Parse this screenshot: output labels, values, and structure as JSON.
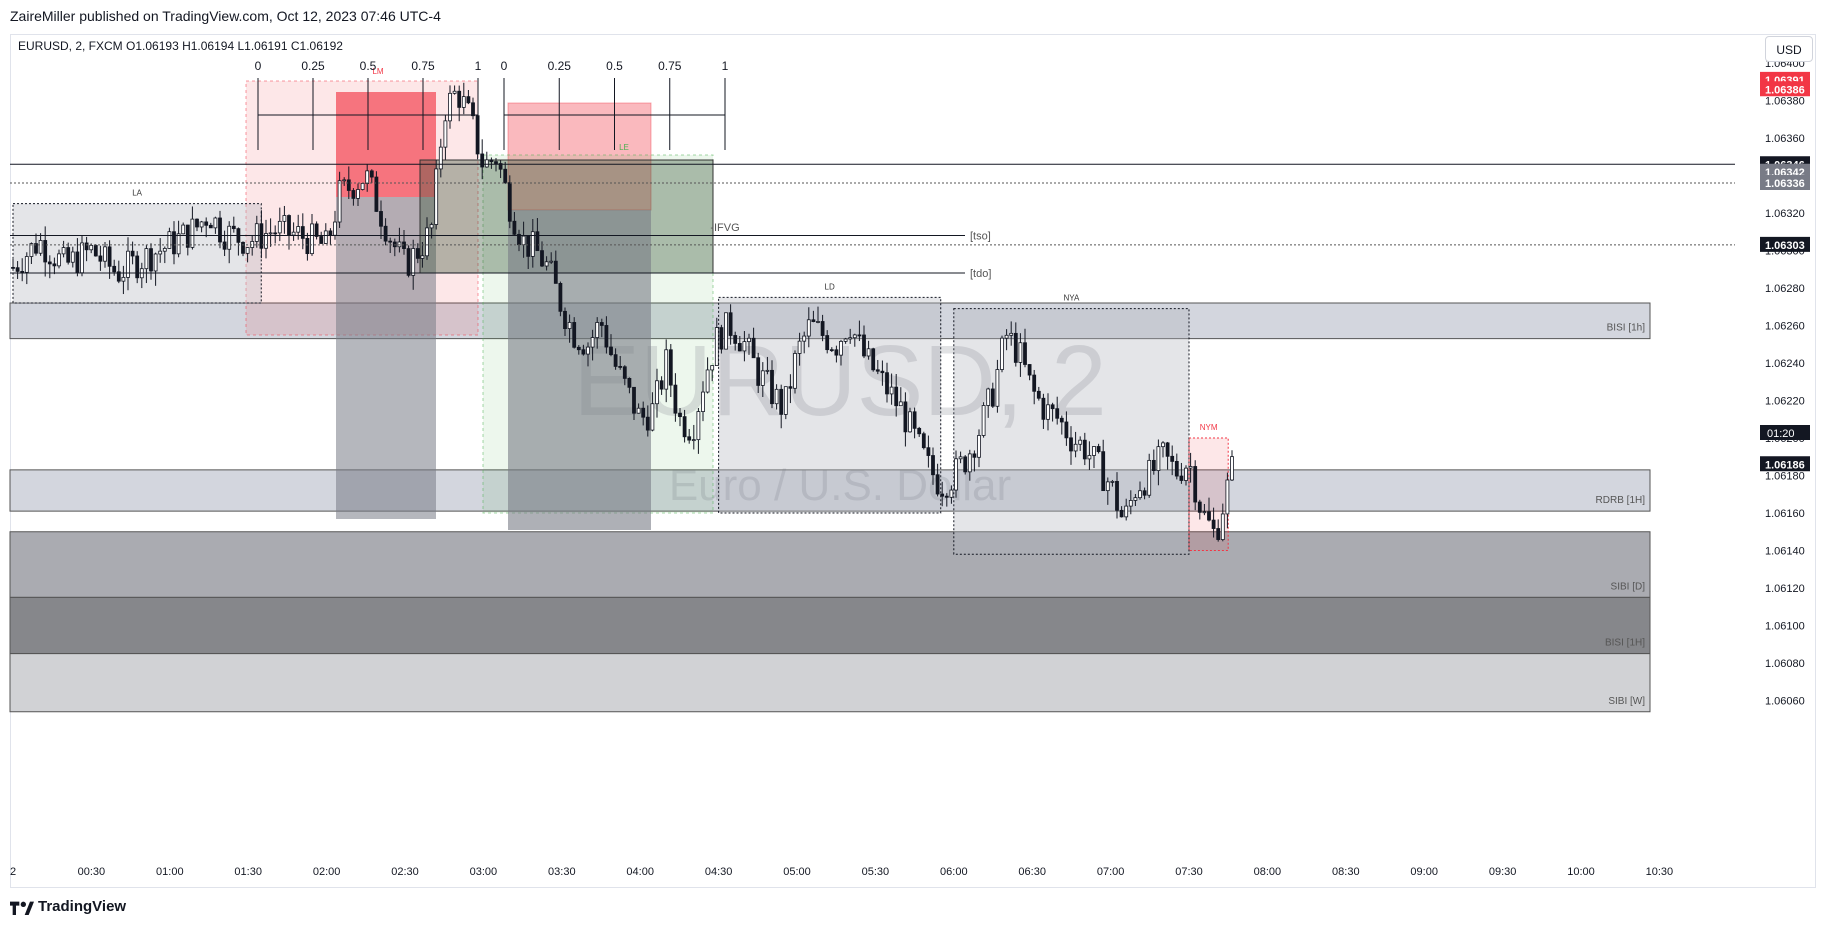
{
  "header": {
    "publisher_line": "ZaireMiller published on TradingView.com, Oct 12, 2023 07:46 UTC-4"
  },
  "footer": {
    "brand": "TradingView"
  },
  "price_scale": {
    "currency_button": "USD"
  },
  "legend": {
    "symbol": "EURUSD, 2, FXCM",
    "open_label": "O",
    "open": "1.06193",
    "high_label": "H",
    "high": "1.06194",
    "low_label": "L",
    "low": "1.06191",
    "close_label": "C",
    "close": "1.06192"
  },
  "watermark": {
    "symbol": "EURUSD, 2",
    "description": "Euro / U.S. Dollar"
  },
  "chart_data": {
    "type": "candlestick",
    "symbol": "EURUSD",
    "timeframe": "2",
    "yaxis": {
      "min": 1.0605,
      "max": 1.0641,
      "ticks": [
        "1.06400",
        "1.06380",
        "1.06360",
        "1.06340",
        "1.06320",
        "1.06300",
        "1.06280",
        "1.06260",
        "1.06240",
        "1.06220",
        "1.06200",
        "1.06180",
        "1.06160",
        "1.06140",
        "1.06120",
        "1.06100",
        "1.06080",
        "1.06060"
      ]
    },
    "xaxis": {
      "ticks": [
        "2",
        "00:30",
        "01:00",
        "01:30",
        "02:00",
        "02:30",
        "03:00",
        "03:30",
        "04:00",
        "04:30",
        "05:00",
        "05:30",
        "06:00",
        "06:30",
        "07:00",
        "07:30",
        "08:00",
        "08:30",
        "09:00",
        "09:30",
        "10:00",
        "10:30"
      ]
    },
    "price_path": [
      [
        "00:00",
        1.06291
      ],
      [
        "00:10",
        1.06305
      ],
      [
        "00:20",
        1.06292
      ],
      [
        "00:30",
        1.063
      ],
      [
        "00:40",
        1.06288
      ],
      [
        "00:50",
        1.06296
      ],
      [
        "01:00",
        1.06303
      ],
      [
        "01:10",
        1.06312
      ],
      [
        "01:15",
        1.0632
      ],
      [
        "01:20",
        1.0631
      ],
      [
        "01:30",
        1.06305
      ],
      [
        "01:40",
        1.06311
      ],
      [
        "01:50",
        1.06308
      ],
      [
        "02:00",
        1.06302
      ],
      [
        "02:05",
        1.0633
      ],
      [
        "02:15",
        1.0634
      ],
      [
        "02:25",
        1.06305
      ],
      [
        "02:30",
        1.06292
      ],
      [
        "02:35",
        1.063
      ],
      [
        "02:40",
        1.0631
      ],
      [
        "02:45",
        1.06375
      ],
      [
        "02:50",
        1.06385
      ],
      [
        "02:55",
        1.0637
      ],
      [
        "03:00",
        1.06345
      ],
      [
        "03:05",
        1.0635
      ],
      [
        "03:10",
        1.06325
      ],
      [
        "03:15",
        1.06305
      ],
      [
        "03:20",
        1.063
      ],
      [
        "03:25",
        1.0629
      ],
      [
        "03:30",
        1.0627
      ],
      [
        "03:35",
        1.06255
      ],
      [
        "03:40",
        1.0625
      ],
      [
        "03:45",
        1.06262
      ],
      [
        "03:50",
        1.0624
      ],
      [
        "03:55",
        1.06225
      ],
      [
        "04:00",
        1.0621
      ],
      [
        "04:05",
        1.06215
      ],
      [
        "04:10",
        1.0624
      ],
      [
        "04:15",
        1.0621
      ],
      [
        "04:20",
        1.06205
      ],
      [
        "04:25",
        1.06235
      ],
      [
        "04:30",
        1.06255
      ],
      [
        "04:35",
        1.0626
      ],
      [
        "04:40",
        1.0625
      ],
      [
        "04:45",
        1.06235
      ],
      [
        "04:50",
        1.06225
      ],
      [
        "04:55",
        1.06215
      ],
      [
        "05:00",
        1.06245
      ],
      [
        "05:05",
        1.0626
      ],
      [
        "05:10",
        1.06255
      ],
      [
        "05:15",
        1.0625
      ],
      [
        "05:20",
        1.06262
      ],
      [
        "05:25",
        1.06245
      ],
      [
        "05:30",
        1.06235
      ],
      [
        "05:35",
        1.06225
      ],
      [
        "05:40",
        1.06215
      ],
      [
        "05:45",
        1.062
      ],
      [
        "05:50",
        1.06185
      ],
      [
        "05:55",
        1.06175
      ],
      [
        "06:00",
        1.0618
      ],
      [
        "06:05",
        1.0619
      ],
      [
        "06:10",
        1.06205
      ],
      [
        "06:15",
        1.06225
      ],
      [
        "06:20",
        1.06255
      ],
      [
        "06:25",
        1.06245
      ],
      [
        "06:30",
        1.06225
      ],
      [
        "06:35",
        1.06215
      ],
      [
        "06:40",
        1.0621
      ],
      [
        "06:45",
        1.062
      ],
      [
        "06:50",
        1.06195
      ],
      [
        "06:55",
        1.06185
      ],
      [
        "07:00",
        1.06175
      ],
      [
        "07:05",
        1.06155
      ],
      [
        "07:10",
        1.06175
      ],
      [
        "07:15",
        1.0618
      ],
      [
        "07:20",
        1.0619
      ],
      [
        "07:25",
        1.06182
      ],
      [
        "07:30",
        1.06188
      ],
      [
        "07:35",
        1.0616
      ],
      [
        "07:40",
        1.06148
      ],
      [
        "07:45",
        1.06175
      ],
      [
        "07:48",
        1.06192
      ]
    ],
    "zones": [
      {
        "label": "BISI [1h]",
        "top": 1.06272,
        "bottom": 1.06253
      },
      {
        "label": "RDRB [1H]",
        "top": 1.06183,
        "bottom": 1.06161
      },
      {
        "label": "SIBI [D]",
        "top": 1.0615,
        "bottom": 1.06115
      },
      {
        "label": "BISI [1H]",
        "top": 1.06115,
        "bottom": 1.06085
      },
      {
        "label": "SIBI [W]",
        "top": 1.06085,
        "bottom": 1.06054
      }
    ],
    "session_boxes": [
      {
        "label": "LA",
        "t0": "00:00",
        "t1": "01:35",
        "top": 1.06325,
        "bottom": 1.06272
      },
      {
        "label": "LD",
        "t0": "04:30",
        "t1": "05:55",
        "top": 1.06275,
        "bottom": 1.0616
      },
      {
        "label": "NYA",
        "t0": "06:00",
        "t1": "07:30",
        "top": 1.06269,
        "bottom": 1.06138
      },
      {
        "label": "NYM",
        "t0": "07:30",
        "t1": "07:45",
        "top": 1.062,
        "bottom": 1.0614
      }
    ],
    "horizontal_levels": [
      {
        "label": "",
        "value": 1.06346
      },
      {
        "label": "[tso]",
        "value": 1.06308
      },
      {
        "label": "[tdo]",
        "value": 1.06288
      },
      {
        "label": "",
        "value": 1.06303,
        "dotted": true
      },
      {
        "label": "",
        "value": 1.06336,
        "dotted": true
      }
    ],
    "annotations": [
      "-IFVG",
      "LE",
      "LM"
    ],
    "fib_levels": [
      "0",
      "0.25",
      "0.5",
      "0.75",
      "1"
    ],
    "price_labels": [
      {
        "value": "1.06391",
        "color": "#f23645"
      },
      {
        "value": "1.06386",
        "color": "#f23645"
      },
      {
        "value": "1.06346",
        "color": "#131722"
      },
      {
        "value": "1.06342",
        "color": "#787b86"
      },
      {
        "value": "1.06336",
        "color": "#787b86"
      },
      {
        "value": "1.06303",
        "color": "#131722"
      },
      {
        "value": "1.06186",
        "color": "#131722"
      }
    ],
    "countdown": "01:20"
  }
}
